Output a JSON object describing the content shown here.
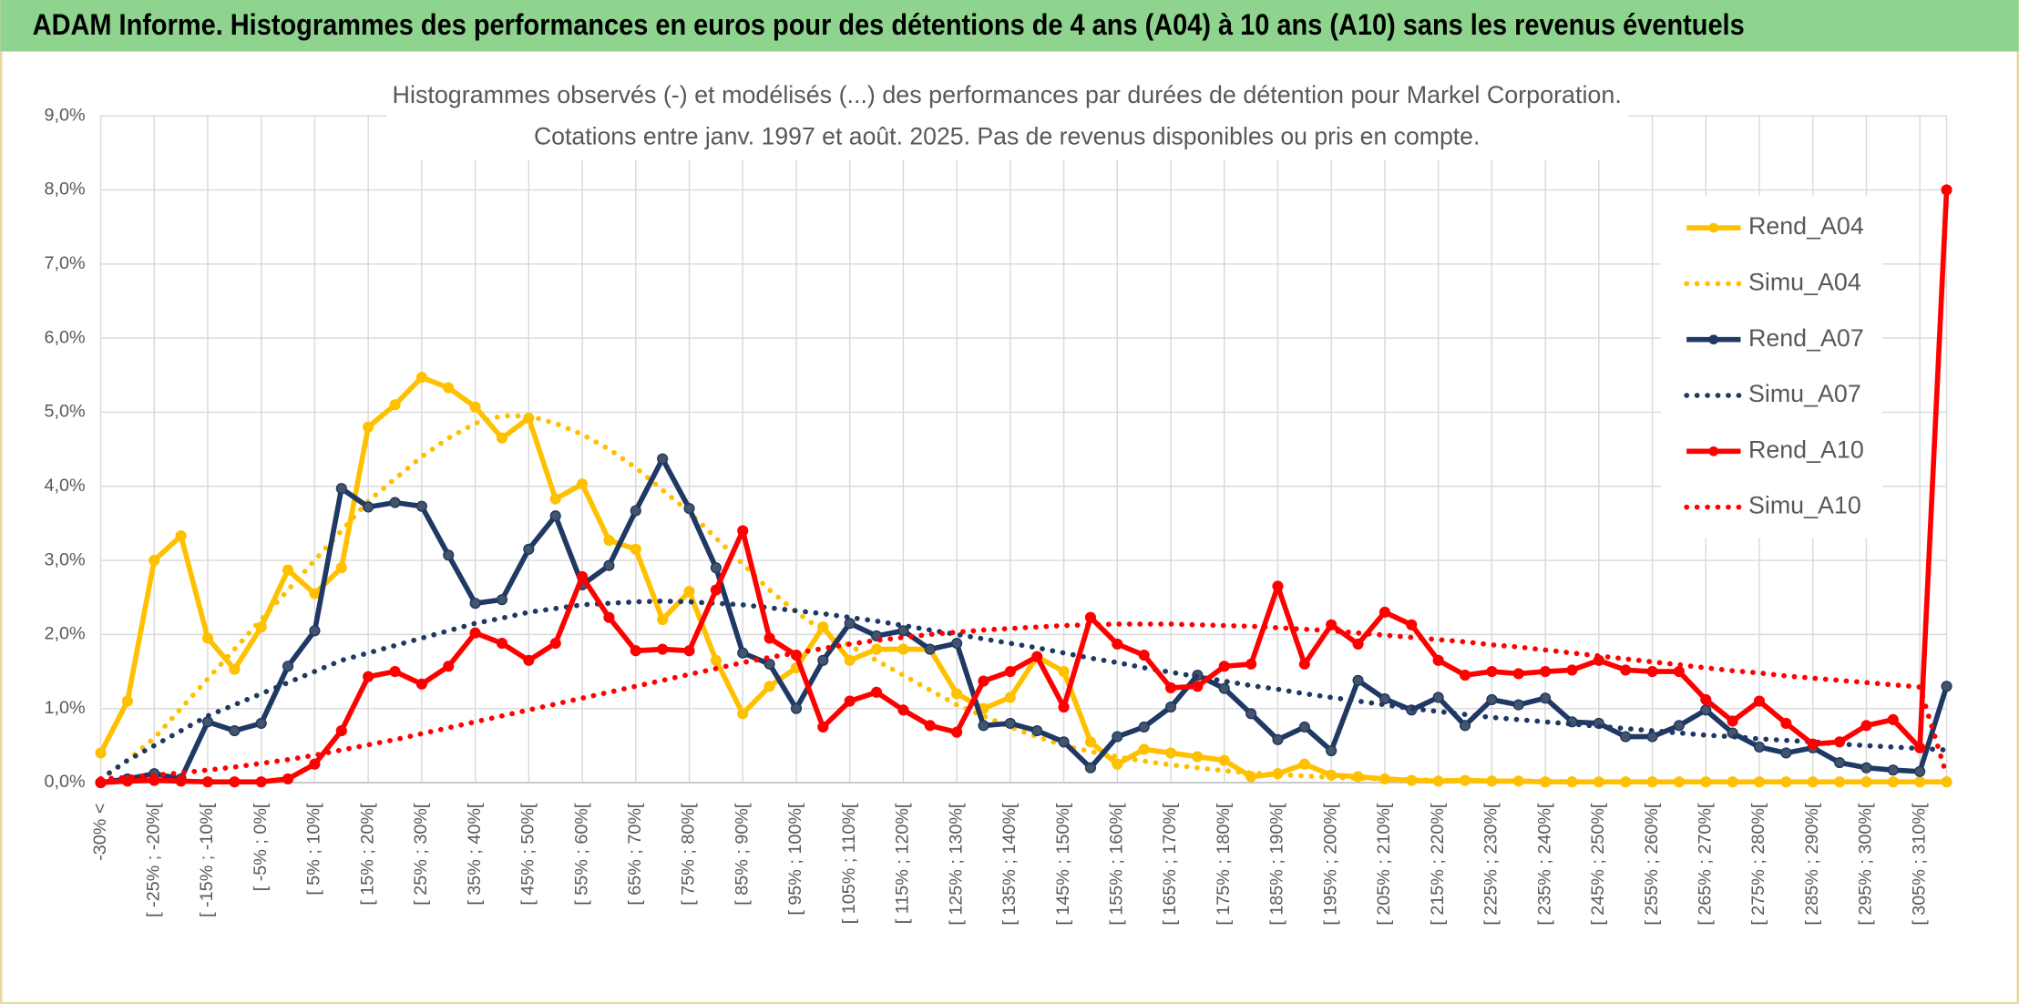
{
  "header": {
    "title": "ADAM Informe. Histogrammes des performances en euros pour des détentions de 4 ans (A04) à 10 ans (A10) sans les revenus éventuels"
  },
  "chart_data": {
    "type": "line",
    "title": "Histogrammes observés (-) et modélisés (...) des performances par durées de détention pour Markel Corporation.",
    "subtitle": "Cotations entre janv. 1997 et août. 2025. Pas de revenus disponibles ou pris en compte.",
    "categories": [
      "-30% <",
      null,
      "[ -25% ; -20%[",
      null,
      "[ -15% ; -10%[",
      null,
      "[ -5% ; 0%[",
      null,
      "[ 5% ; 10%[",
      null,
      "[ 15% ; 20%[",
      null,
      "[ 25% ; 30%[",
      null,
      "[ 35% ; 40%[",
      null,
      "[ 45% ; 50%[",
      null,
      "[ 55% ; 60%[",
      null,
      "[ 65% ; 70%[",
      null,
      "[ 75% ; 80%[",
      null,
      "[ 85% ; 90%[",
      null,
      "[ 95% ; 100%[",
      null,
      "[ 105% ; 110%[",
      null,
      "[ 115% ; 120%[",
      null,
      "[ 125% ; 130%[",
      null,
      "[ 135% ; 140%[",
      null,
      "[ 145% ; 150%[",
      null,
      "[ 155% ; 160%[",
      null,
      "[ 165% ; 170%[",
      null,
      "[ 175% ; 180%[",
      null,
      "[ 185% ; 190%[",
      null,
      "[ 195% ; 200%[",
      null,
      "[ 205% ; 210%[",
      null,
      "[ 215% ; 220%[",
      null,
      "[ 225% ; 230%[",
      null,
      "[ 235% ; 240%[",
      null,
      "[ 245% ; 250%[",
      null,
      "[ 255% ; 260%[",
      null,
      "[ 265% ; 270%[",
      null,
      "[ 275% ; 280%[",
      null,
      "[ 285% ; 290%[",
      null,
      "[ 295% ; 300%[",
      null,
      "[ 305% ; 310%[",
      null
    ],
    "series": [
      {
        "name": "Rend_A04",
        "color": "#FFC000",
        "style": "solid",
        "markers": true,
        "values": [
          0.4,
          1.1,
          3.0,
          3.33,
          1.95,
          1.53,
          2.1,
          2.87,
          2.55,
          2.9,
          4.8,
          5.1,
          5.47,
          5.33,
          5.07,
          4.65,
          4.92,
          3.83,
          4.03,
          3.27,
          3.15,
          2.2,
          2.58,
          1.65,
          0.93,
          1.3,
          1.55,
          2.1,
          1.65,
          1.8,
          1.8,
          1.8,
          1.2,
          1.0,
          1.15,
          1.7,
          1.5,
          0.55,
          0.25,
          0.45,
          0.4,
          0.35,
          0.3,
          0.08,
          0.12,
          0.25,
          0.1,
          0.08,
          0.05,
          0.03,
          0.02,
          0.03,
          0.02,
          0.02,
          0.01,
          0.01,
          0.01,
          0.01,
          0.01,
          0.01,
          0.01,
          0.01,
          0.01,
          0.01,
          0.01,
          0.01,
          0.01,
          0.01,
          0.01,
          0.01
        ]
      },
      {
        "name": "Simu_A04",
        "color": "#FFC000",
        "style": "dotted",
        "markers": false,
        "values": [
          0.05,
          0.3,
          0.6,
          1.0,
          1.4,
          1.8,
          2.2,
          2.6,
          3.0,
          3.4,
          3.8,
          4.1,
          4.4,
          4.65,
          4.85,
          4.95,
          4.95,
          4.85,
          4.7,
          4.5,
          4.25,
          3.95,
          3.65,
          3.3,
          2.95,
          2.6,
          2.3,
          2.05,
          1.85,
          1.65,
          1.45,
          1.25,
          1.05,
          0.9,
          0.75,
          0.62,
          0.5,
          0.42,
          0.35,
          0.29,
          0.24,
          0.2,
          0.16,
          0.13,
          0.11,
          0.09,
          0.07,
          0.06,
          0.05,
          0.04,
          0.03,
          0.03,
          0.02,
          0.02,
          0.02,
          0.01,
          0.01,
          0.01,
          0.01,
          0.01,
          0.01,
          0.01,
          0.01,
          0.01,
          0.01,
          0.01,
          0.01,
          0.01,
          0.01,
          0.01
        ]
      },
      {
        "name": "Rend_A07",
        "color": "#1F3864",
        "style": "solid",
        "markers": true,
        "values": [
          0,
          0.05,
          0.12,
          0.05,
          0.82,
          0.7,
          0.8,
          1.57,
          2.05,
          3.97,
          3.72,
          3.78,
          3.73,
          3.07,
          2.42,
          2.47,
          3.15,
          3.6,
          2.67,
          2.93,
          3.67,
          4.37,
          3.7,
          2.9,
          1.75,
          1.6,
          1.0,
          1.65,
          2.15,
          1.98,
          2.05,
          1.8,
          1.88,
          0.77,
          0.8,
          0.7,
          0.55,
          0.2,
          0.62,
          0.75,
          1.02,
          1.45,
          1.27,
          0.93,
          0.58,
          0.75,
          0.43,
          1.38,
          1.13,
          0.98,
          1.15,
          0.77,
          1.12,
          1.05,
          1.14,
          0.82,
          0.8,
          0.62,
          0.62,
          0.77,
          0.98,
          0.67,
          0.48,
          0.4,
          0.47,
          0.27,
          0.2,
          0.17,
          0.15,
          1.3
        ]
      },
      {
        "name": "Simu_A07",
        "color": "#1F3864",
        "style": "dotted",
        "markers": false,
        "values": [
          0.05,
          0.3,
          0.5,
          0.7,
          0.9,
          1.05,
          1.2,
          1.35,
          1.5,
          1.65,
          1.75,
          1.85,
          1.95,
          2.05,
          2.15,
          2.22,
          2.3,
          2.35,
          2.4,
          2.42,
          2.44,
          2.45,
          2.44,
          2.42,
          2.4,
          2.36,
          2.32,
          2.28,
          2.23,
          2.18,
          2.12,
          2.06,
          2.0,
          1.94,
          1.88,
          1.82,
          1.75,
          1.68,
          1.62,
          1.55,
          1.49,
          1.43,
          1.37,
          1.31,
          1.26,
          1.2,
          1.15,
          1.1,
          1.05,
          1.0,
          0.96,
          0.92,
          0.88,
          0.85,
          0.82,
          0.79,
          0.76,
          0.73,
          0.7,
          0.67,
          0.64,
          0.62,
          0.59,
          0.57,
          0.55,
          0.52,
          0.5,
          0.48,
          0.46,
          0.44
        ]
      },
      {
        "name": "Rend_A10",
        "color": "#FF0000",
        "style": "solid",
        "markers": true,
        "values": [
          0,
          0.02,
          0.03,
          0.02,
          0.01,
          0.01,
          0.01,
          0.05,
          0.25,
          0.7,
          1.43,
          1.5,
          1.33,
          1.57,
          2.02,
          1.88,
          1.65,
          1.88,
          2.78,
          2.23,
          1.78,
          1.8,
          1.78,
          2.6,
          3.4,
          1.95,
          1.72,
          0.75,
          1.1,
          1.22,
          0.98,
          0.77,
          0.68,
          1.37,
          1.5,
          1.7,
          1.02,
          2.23,
          1.87,
          1.72,
          1.28,
          1.3,
          1.57,
          1.6,
          2.65,
          1.6,
          2.13,
          1.87,
          2.3,
          2.13,
          1.65,
          1.45,
          1.5,
          1.47,
          1.5,
          1.52,
          1.65,
          1.52,
          1.5,
          1.5,
          1.12,
          0.83,
          1.1,
          0.8,
          0.52,
          0.55,
          0.77,
          0.85,
          0.47,
          8.0
        ]
      },
      {
        "name": "Simu_A10",
        "color": "#FF0000",
        "style": "dotted",
        "markers": false,
        "values": [
          0.05,
          0.07,
          0.1,
          0.13,
          0.17,
          0.21,
          0.26,
          0.31,
          0.37,
          0.44,
          0.51,
          0.58,
          0.66,
          0.74,
          0.82,
          0.9,
          0.98,
          1.06,
          1.14,
          1.22,
          1.3,
          1.38,
          1.46,
          1.54,
          1.62,
          1.69,
          1.75,
          1.81,
          1.87,
          1.92,
          1.96,
          2.0,
          2.03,
          2.06,
          2.08,
          2.1,
          2.12,
          2.13,
          2.14,
          2.14,
          2.14,
          2.13,
          2.12,
          2.11,
          2.09,
          2.07,
          2.05,
          2.02,
          1.99,
          1.96,
          1.93,
          1.9,
          1.86,
          1.83,
          1.79,
          1.75,
          1.71,
          1.67,
          1.63,
          1.59,
          1.55,
          1.51,
          1.48,
          1.44,
          1.41,
          1.38,
          1.35,
          1.32,
          1.29,
          0.1
        ]
      }
    ],
    "ylim": [
      0,
      9
    ],
    "yticks": [
      {
        "value": 0,
        "label": "0,0%"
      },
      {
        "value": 1,
        "label": "1,0%"
      },
      {
        "value": 2,
        "label": "2,0%"
      },
      {
        "value": 3,
        "label": "3,0%"
      },
      {
        "value": 4,
        "label": "4,0%"
      },
      {
        "value": 5,
        "label": "5,0%"
      },
      {
        "value": 6,
        "label": "6,0%"
      },
      {
        "value": 7,
        "label": "7,0%"
      },
      {
        "value": 8,
        "label": "8,0%"
      },
      {
        "value": 9,
        "label": "9,0%"
      }
    ],
    "grid": true,
    "legend": "right"
  }
}
